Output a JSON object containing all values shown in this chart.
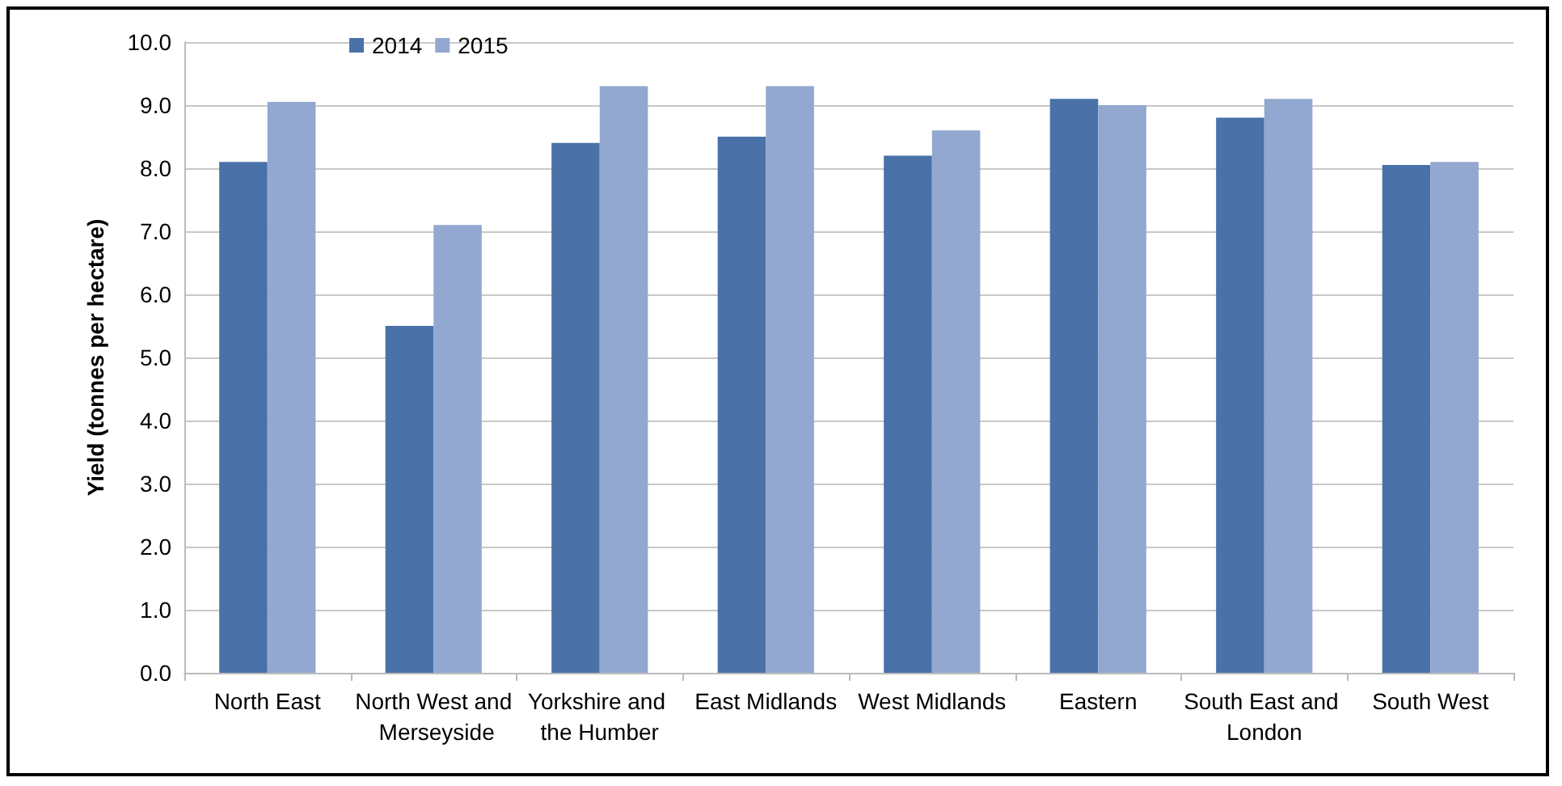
{
  "chart_data": {
    "type": "bar",
    "ylabel": "Yield (tonnes per hectare)",
    "categories": [
      "North East",
      "North West and Merseyside",
      "Yorkshire and the Humber",
      "East Midlands",
      "West Midlands",
      "Eastern",
      "South East and London",
      "South West"
    ],
    "series": [
      {
        "name": "2014",
        "color": "#4a72a8",
        "values": [
          8.1,
          5.5,
          8.4,
          8.5,
          8.2,
          9.1,
          8.8,
          8.05
        ]
      },
      {
        "name": "2015",
        "color": "#93a8d0",
        "values": [
          9.05,
          7.1,
          9.3,
          9.3,
          8.6,
          9.0,
          9.1,
          8.1
        ]
      }
    ],
    "ylim": [
      0,
      10
    ],
    "yticks": [
      {
        "value": 0,
        "label": "0.0"
      },
      {
        "value": 1,
        "label": "1.0"
      },
      {
        "value": 2,
        "label": "2.0"
      },
      {
        "value": 3,
        "label": "3.0"
      },
      {
        "value": 4,
        "label": "4.0"
      },
      {
        "value": 5,
        "label": "5.0"
      },
      {
        "value": 6,
        "label": "6.0"
      },
      {
        "value": 7,
        "label": "7.0"
      },
      {
        "value": 8,
        "label": "8.0"
      },
      {
        "value": 9,
        "label": "9.0"
      },
      {
        "value": 10,
        "label": "10.0"
      }
    ],
    "grid": "y",
    "legend": "top left"
  }
}
